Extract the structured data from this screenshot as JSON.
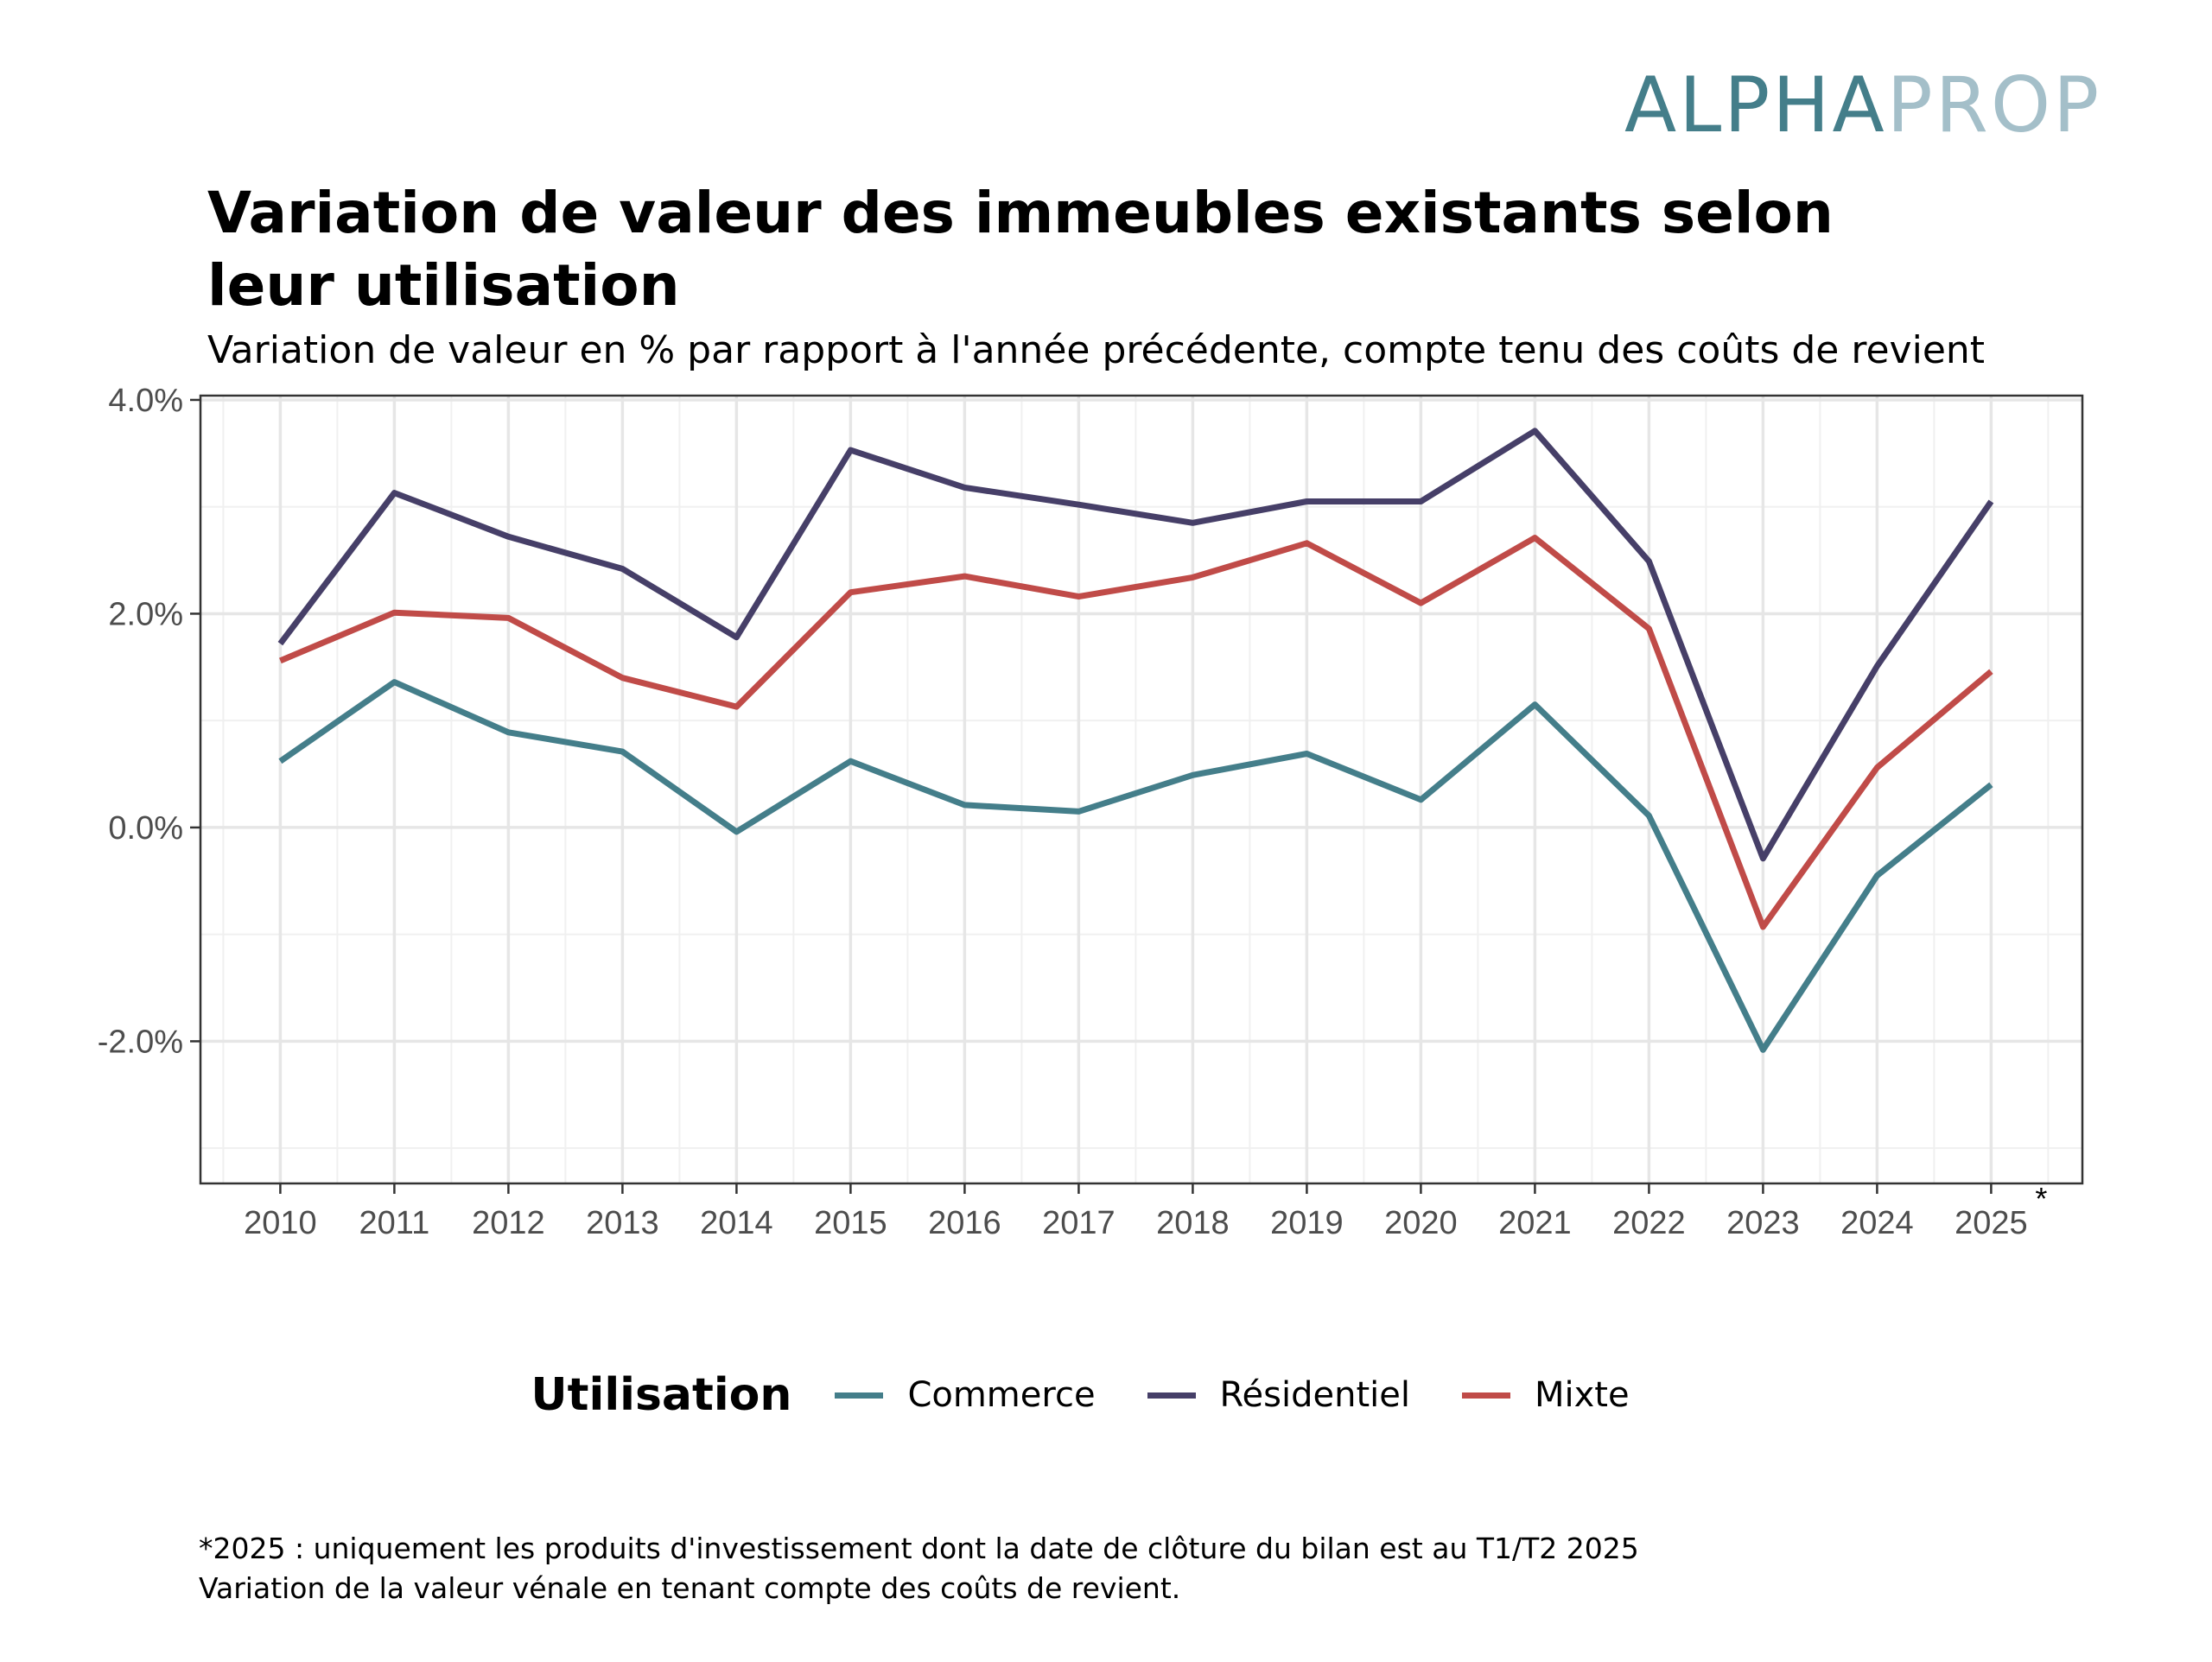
{
  "logo": {
    "part1": "ALPHA",
    "part2": "PROP",
    "colors": [
      "#447e8a",
      "#a4bfc9"
    ]
  },
  "chart_data": {
    "type": "line",
    "title": "Variation de valeur des immeubles existants selon leur utilisation",
    "subtitle": "Variation de valeur en % par rapport à l'année précédente, compte tenu des coûts de revient",
    "xlabel": "",
    "ylabel": "",
    "x": [
      2010,
      2011,
      2012,
      2013,
      2014,
      2015,
      2016,
      2017,
      2018,
      2019,
      2020,
      2021,
      2022,
      2023,
      2024,
      2025
    ],
    "x_tick_labels": [
      "2010",
      "2011",
      "2012",
      "2013",
      "2014",
      "2015",
      "2016",
      "2017",
      "2018",
      "2019",
      "2020",
      "2021",
      "2022",
      "2023",
      "2024",
      "2025"
    ],
    "x_tick_marker": {
      "year": 2025,
      "text": "*"
    },
    "xlim": [
      2009.3,
      2025.8
    ],
    "ylim": [
      -3.33,
      4.04
    ],
    "y_ticks": [
      -2.0,
      0.0,
      2.0,
      4.0
    ],
    "y_tick_labels": [
      "-2.0%",
      "0.0%",
      "2.0%",
      "4.0%"
    ],
    "y_minor_ticks": [
      -3.0,
      -1.0,
      1.0,
      3.0
    ],
    "grid": true,
    "legend": {
      "title": "Utilisation",
      "position": "bottom"
    },
    "series": [
      {
        "name": "Commerce",
        "color": "#447e8a",
        "values": [
          0.62,
          1.36,
          0.89,
          0.71,
          -0.04,
          0.62,
          0.21,
          0.15,
          0.49,
          0.69,
          0.26,
          1.15,
          0.11,
          -2.08,
          -0.45,
          0.4
        ]
      },
      {
        "name": "Résidentiel",
        "color": "#463f68",
        "values": [
          1.72,
          3.13,
          2.72,
          2.42,
          1.78,
          3.53,
          3.18,
          3.02,
          2.85,
          3.05,
          3.05,
          3.71,
          2.49,
          -0.29,
          1.51,
          3.05
        ]
      },
      {
        "name": "Mixte",
        "color": "#c04b48",
        "values": [
          1.56,
          2.01,
          1.96,
          1.4,
          1.13,
          2.2,
          2.35,
          2.16,
          2.34,
          2.66,
          2.1,
          2.71,
          1.86,
          -0.93,
          0.56,
          1.46
        ]
      }
    ]
  },
  "footnotes": [
    "*2025 : uniquement les produits d'investissement dont la date de clôture du bilan est au T1/T2 2025",
    "Variation de la valeur vénale en tenant compte des coûts de revient."
  ]
}
